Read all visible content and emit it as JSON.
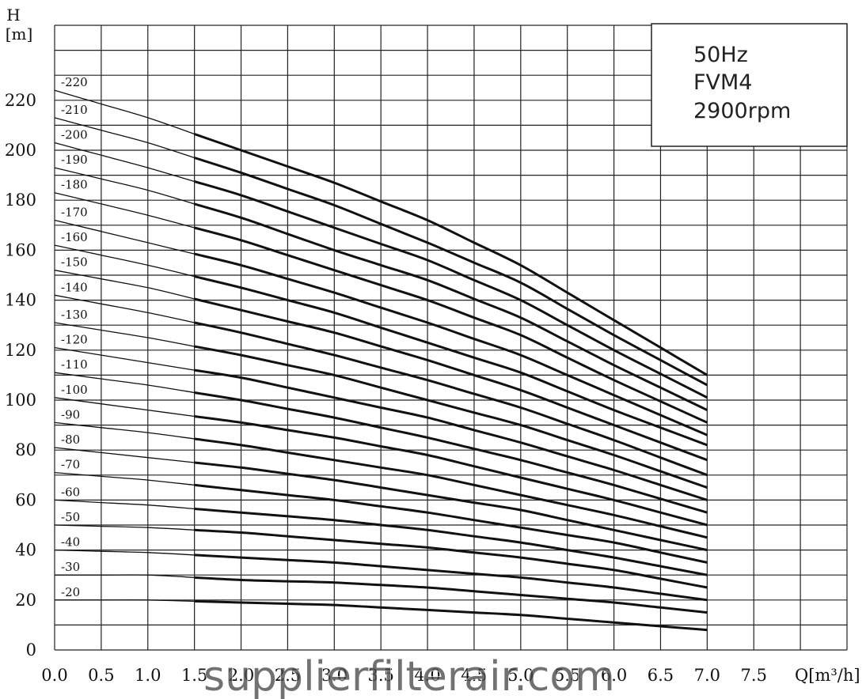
{
  "chart_data": {
    "type": "line",
    "x_ticks": [
      "0.0",
      "0.5",
      "1.0",
      "1.5",
      "2.0",
      "2.5",
      "3.0",
      "3.5",
      "4.0",
      "4.5",
      "5.0",
      "5.5",
      "6.0",
      "6.5",
      "7.0",
      "7.5"
    ],
    "y_ticks": [
      "0",
      "20",
      "40",
      "60",
      "80",
      "100",
      "120",
      "140",
      "160",
      "180",
      "200",
      "220"
    ],
    "xlabel": "Q[m³/h]",
    "ylabel_top": "H",
    "ylabel_unit": "[m]",
    "xlim": [
      0,
      8.5
    ],
    "ylim": [
      0,
      250
    ],
    "x": [
      0.0,
      1.0,
      2.0,
      3.0,
      4.0,
      5.0,
      6.0,
      7.0
    ],
    "series": [
      {
        "name": "-220",
        "values": [
          224,
          213,
          200,
          187,
          172,
          154,
          132,
          110
        ]
      },
      {
        "name": "-210",
        "values": [
          213,
          203,
          191,
          178,
          163,
          147,
          126,
          106
        ]
      },
      {
        "name": "-200",
        "values": [
          203,
          193,
          182,
          169,
          156,
          140,
          120,
          101
        ]
      },
      {
        "name": "-190",
        "values": [
          193,
          184,
          173,
          160,
          148,
          133,
          114,
          96
        ]
      },
      {
        "name": "-180",
        "values": [
          183,
          174,
          164,
          152,
          140,
          126,
          108,
          91
        ]
      },
      {
        "name": "-170",
        "values": [
          172,
          163,
          154,
          143,
          131,
          118,
          102,
          86
        ]
      },
      {
        "name": "-160",
        "values": [
          162,
          154,
          145,
          135,
          123,
          111,
          96,
          82
        ]
      },
      {
        "name": "-150",
        "values": [
          152,
          145,
          136,
          127,
          116,
          104,
          90,
          76
        ]
      },
      {
        "name": "-140",
        "values": [
          142,
          135,
          127,
          118,
          108,
          97,
          84,
          70
        ]
      },
      {
        "name": "-130",
        "values": [
          131,
          125,
          118,
          110,
          100,
          90,
          78,
          65
        ]
      },
      {
        "name": "-120",
        "values": [
          121,
          115,
          109,
          101,
          93,
          83,
          72,
          60
        ]
      },
      {
        "name": "-110",
        "values": [
          111,
          106,
          100,
          93,
          85,
          76,
          66,
          55
        ]
      },
      {
        "name": "-100",
        "values": [
          101,
          96,
          91,
          85,
          78,
          69,
          60,
          50
        ]
      },
      {
        "name": "-90",
        "values": [
          91,
          87,
          82,
          76,
          70,
          62,
          54,
          45
        ]
      },
      {
        "name": "-80",
        "values": [
          81,
          77,
          73,
          68,
          62,
          56,
          48,
          40
        ]
      },
      {
        "name": "-70",
        "values": [
          71,
          68,
          64,
          60,
          55,
          49,
          43,
          35
        ]
      },
      {
        "name": "-60",
        "values": [
          60,
          58,
          55,
          52,
          48,
          43,
          37,
          30
        ]
      },
      {
        "name": "-50",
        "values": [
          50,
          49,
          47,
          44,
          41,
          37,
          32,
          25
        ]
      },
      {
        "name": "-40",
        "values": [
          40,
          39,
          37,
          35,
          32,
          29,
          25,
          20
        ]
      },
      {
        "name": "-30",
        "values": [
          30,
          30,
          28,
          27,
          25,
          22,
          19,
          15
        ]
      },
      {
        "name": "-20",
        "values": [
          20,
          20,
          19,
          18,
          16,
          14,
          11,
          8
        ]
      }
    ],
    "grid": true,
    "legend": "inline labels at left end of each curve",
    "line_color": "#111111"
  },
  "info_box": {
    "line1": "50Hz",
    "line2": "FVM4",
    "line3": "2900rpm"
  },
  "watermark": "supplierfilterair.com"
}
